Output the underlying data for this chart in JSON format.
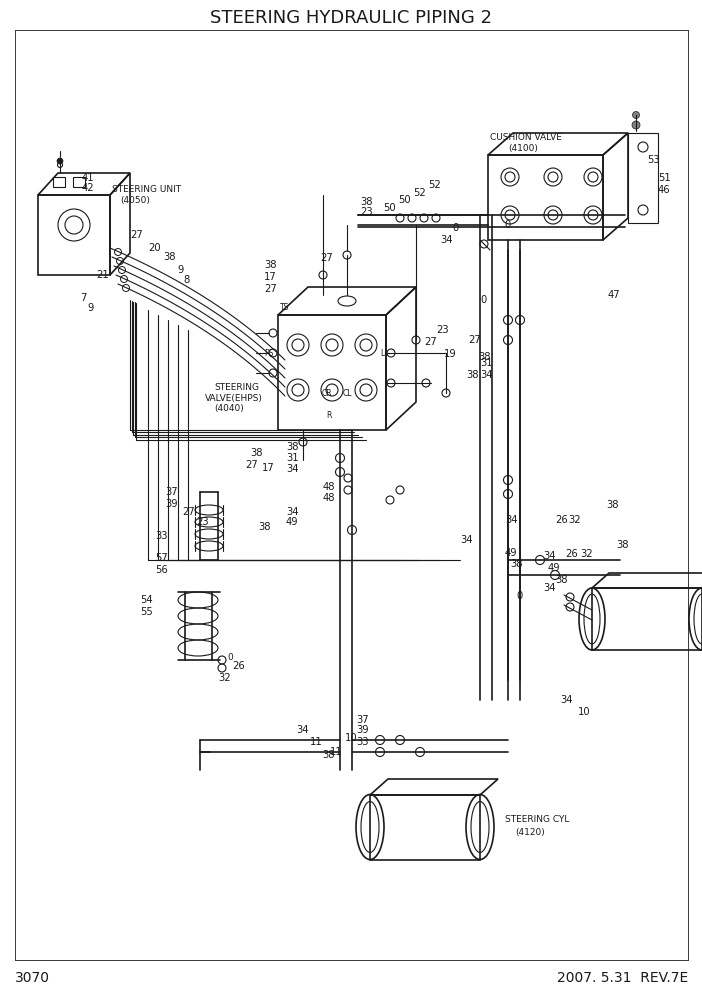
{
  "title": "STEERING HYDRAULIC PIPING 2",
  "page_num": "3070",
  "rev": "2007. 5.31  REV.7E",
  "bg_color": "#ffffff",
  "line_color": "#1a1a1a",
  "title_fontsize": 13,
  "footer_fontsize": 10,
  "label_fontsize": 7.2,
  "small_fontsize": 6.5,
  "figsize": [
    7.02,
    9.92
  ],
  "dpi": 100
}
